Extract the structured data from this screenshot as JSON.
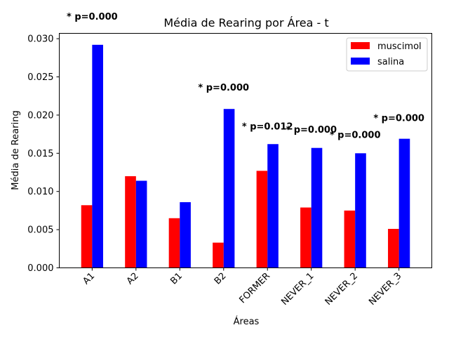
{
  "chart_data": {
    "type": "bar",
    "title": "Média de Rearing por Área - t",
    "xlabel": "Áreas",
    "ylabel": "Média de Rearing",
    "categories": [
      "A1",
      "A2",
      "B1",
      "B2",
      "FORMER",
      "NEVER_1",
      "NEVER_2",
      "NEVER_3"
    ],
    "series": [
      {
        "name": "muscimol",
        "color": "#ff0000",
        "values": [
          0.0082,
          0.012,
          0.0065,
          0.0033,
          0.0127,
          0.0079,
          0.0075,
          0.0051
        ]
      },
      {
        "name": "salina",
        "color": "#0000ff",
        "values": [
          0.0292,
          0.0114,
          0.0086,
          0.0208,
          0.0162,
          0.0157,
          0.015,
          0.0169
        ]
      }
    ],
    "annotations": [
      {
        "text": "* p=0.000",
        "category": "A1",
        "y": 0.0325
      },
      {
        "text": "* p=0.000",
        "category": "B2",
        "y": 0.0232
      },
      {
        "text": "* p=0.012",
        "category": "FORMER",
        "y": 0.0181
      },
      {
        "text": "* p=0.000",
        "category": "NEVER_1",
        "y": 0.0177
      },
      {
        "text": "* p=0.000",
        "category": "NEVER_2",
        "y": 0.017
      },
      {
        "text": "* p=0.000",
        "category": "NEVER_3",
        "y": 0.0192
      }
    ],
    "yticks": [
      "0.000",
      "0.005",
      "0.010",
      "0.015",
      "0.020",
      "0.025",
      "0.030"
    ],
    "ylim": [
      0,
      0.0307
    ],
    "grid": false,
    "legend_position": "top-right"
  }
}
